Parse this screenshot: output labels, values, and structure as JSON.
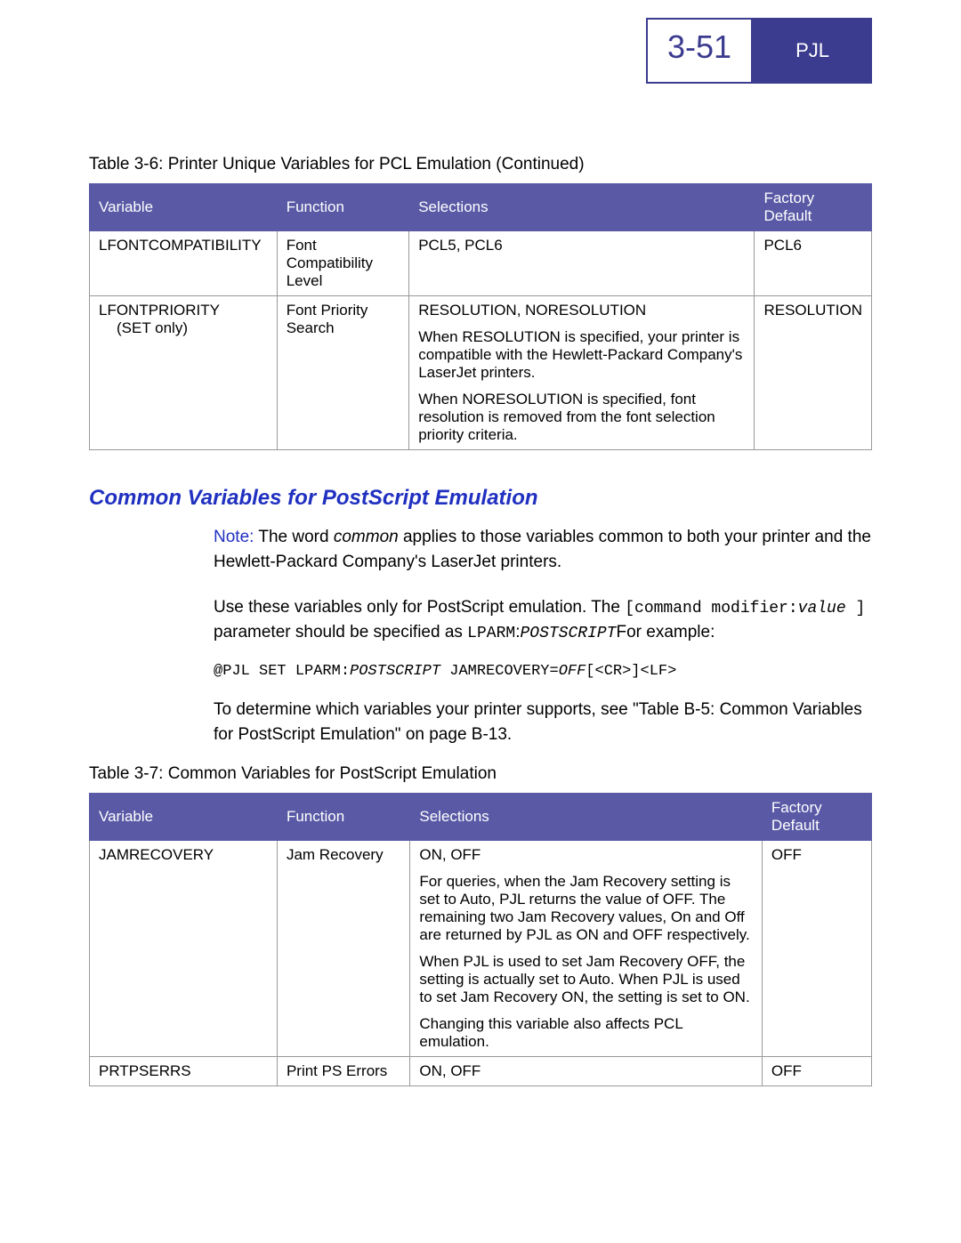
{
  "header": {
    "page_number": "3-51",
    "tab_label": "PJL"
  },
  "table1": {
    "caption": "Table 3-6:   Printer Unique Variables for PCL Emulation (Continued)",
    "headers": {
      "variable": "Variable",
      "function": "Function",
      "selections": "Selections",
      "default": "Factory Default"
    },
    "row1": {
      "variable": "LFONTCOMPATIBILITY",
      "function": "Font Compatibility Level",
      "selections": "PCL5, PCL6",
      "default": "PCL6"
    },
    "row2": {
      "variable": "LFONTPRIORITY",
      "variable_note": "(SET only)",
      "function": "Font Priority Search",
      "sel_line1": "RESOLUTION, NORESOLUTION",
      "sel_line2": "When RESOLUTION is specified, your printer is compatible with the Hewlett-Packard Company's LaserJet printers.",
      "sel_line3": "When NORESOLUTION is specified, font resolution is removed from the font selection priority criteria.",
      "default": "RESOLUTION"
    }
  },
  "section": {
    "heading": "Common Variables for PostScript Emulation",
    "note_label": "Note:",
    "note_text_1": "The word ",
    "note_text_italic": "common",
    "note_text_2": " applies to those variables common to both your printer and the Hewlett-Packard Company's LaserJet printers.",
    "para1_a": "Use these variables only for PostScript emulation. The ",
    "para1_code1": "[command modifier:",
    "para1_code1_italic": "value",
    "para1_code1_end": " ]",
    "para1_b": " parameter should be specified as ",
    "para1_code2": "LPARM",
    "para1_b2": ":",
    "para1_italic2": "POSTSCRIPT",
    "para1_c": "For example:",
    "code_a": "@PJL SET LPARM:",
    "code_italic": "POSTSCRIPT",
    "code_b": " JAMRECOVERY=",
    "code_italic2": "OFF",
    "code_c": "[<CR>]<LF>",
    "para2": "To determine which variables your printer supports, see \"Table B-5: Common Variables for PostScript Emulation\" on page B-13."
  },
  "table2": {
    "caption": "Table 3-7:   Common Variables for PostScript Emulation",
    "headers": {
      "variable": "Variable",
      "function": "Function",
      "selections": "Selections",
      "default": "Factory Default"
    },
    "row1": {
      "variable": "JAMRECOVERY",
      "function": "Jam Recovery",
      "sel_line1": "ON, OFF",
      "sel_line2": "For queries, when the Jam Recovery setting is set to Auto, PJL returns the value of OFF. The remaining two Jam Recovery values, On and Off are returned by PJL as ON and OFF respectively.",
      "sel_line3": "When PJL is used to set Jam Recovery OFF, the setting is actually set to Auto. When PJL is used to set Jam Recovery ON, the setting is set to ON.",
      "sel_line4": "Changing this variable also affects PCL emulation.",
      "default": "OFF"
    },
    "row2": {
      "variable": "PRTPSERRS",
      "function": "Print PS Errors",
      "selections": "ON, OFF",
      "default": "OFF"
    }
  }
}
